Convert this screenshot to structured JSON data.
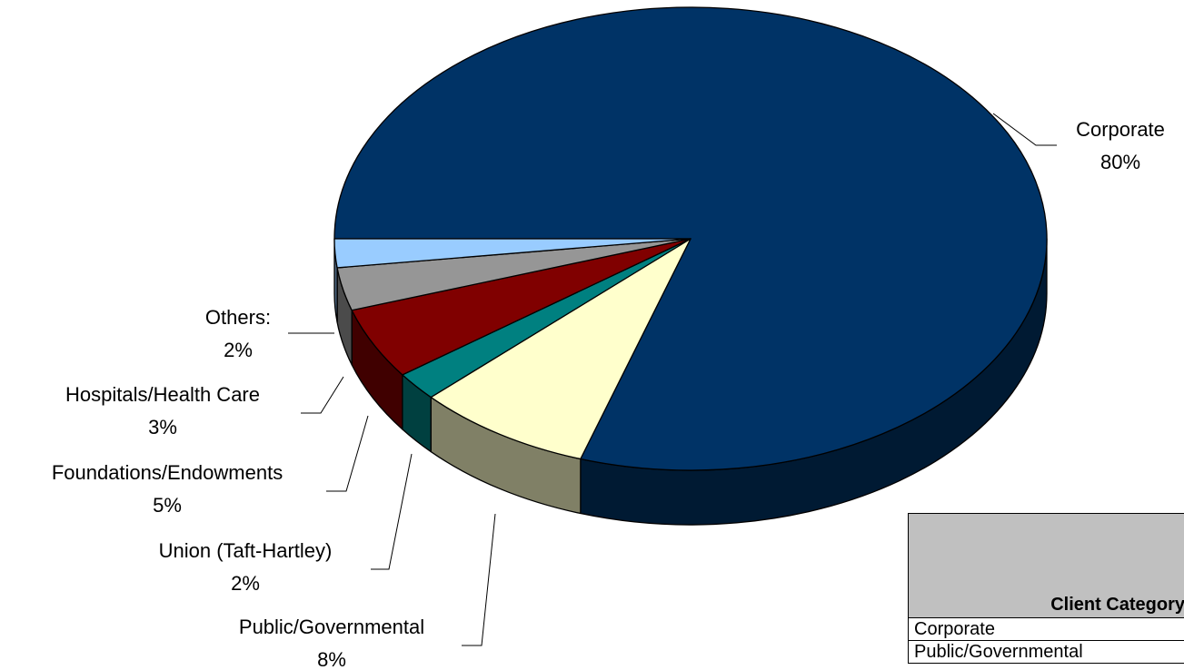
{
  "chart_data": {
    "type": "pie",
    "style": "3d",
    "title": "",
    "legend_placement": "none",
    "slices": [
      {
        "label": "Corporate",
        "value": 80,
        "value_label": "80%",
        "color": "#003366",
        "side_color": "#001a33"
      },
      {
        "label": "Public/Governmental",
        "value": 8,
        "value_label": "8%",
        "color": "#ffffcc",
        "side_color": "#808066"
      },
      {
        "label": "Union (Taft-Hartley)",
        "value": 2,
        "value_label": "2%",
        "color": "#008080",
        "side_color": "#004040"
      },
      {
        "label": "Foundations/Endowments",
        "value": 5,
        "value_label": "5%",
        "color": "#800000",
        "side_color": "#400000"
      },
      {
        "label": "Hospitals/Health Care",
        "value": 3,
        "value_label": "3%",
        "color": "#969696",
        "side_color": "#4b4b4b"
      },
      {
        "label": "Others:",
        "value": 2,
        "value_label": "2%",
        "color": "#99ccff",
        "side_color": "#4d6680"
      }
    ]
  },
  "table": {
    "header": "Client Category",
    "rows": [
      "Corporate",
      "Public/Governmental"
    ]
  }
}
